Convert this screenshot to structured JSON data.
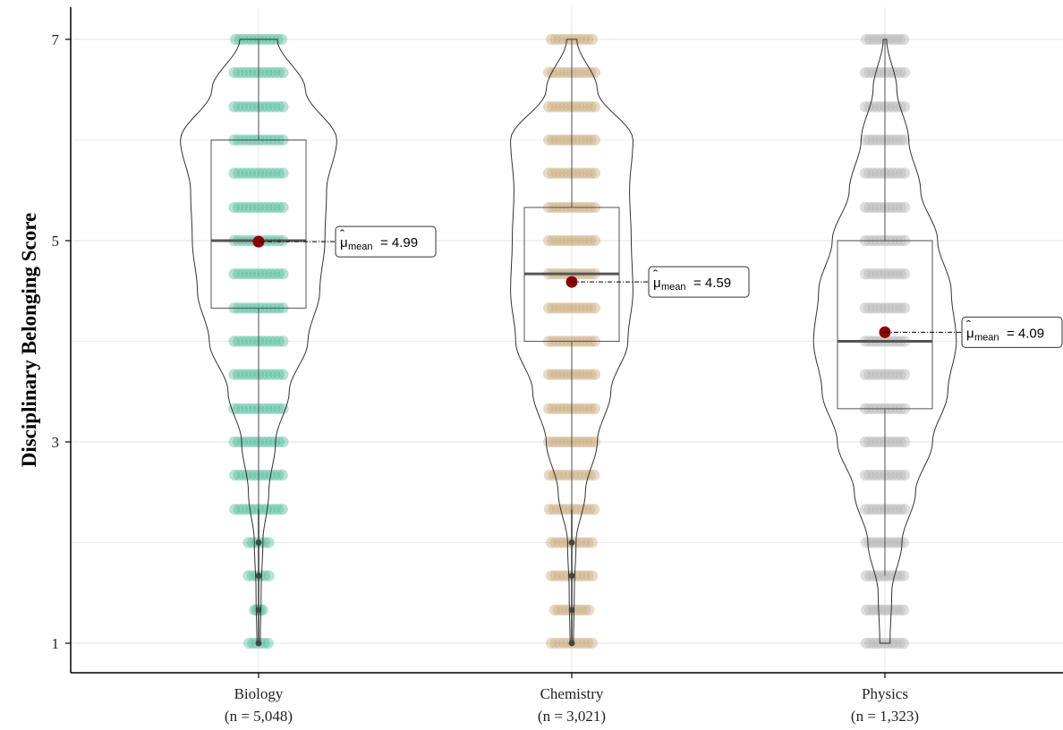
{
  "chart_data": {
    "type": "violin",
    "ylabel": "Disciplinary Belonging Score",
    "xlabel": "",
    "ylim": [
      0.8,
      7.25
    ],
    "yticks": [
      1,
      3,
      5,
      7
    ],
    "grid": true,
    "mean_marker_color": "#8b0000",
    "groups": [
      {
        "category": "Biology",
        "n_label": "(n = 5,048)",
        "color": "#5cbf9f",
        "min": 1,
        "q1": 4.33,
        "median": 5,
        "q3": 6,
        "max": 7,
        "whisker_low": 2.33,
        "whisker_high": 7,
        "mean": 4.99,
        "mean_label": "4.99",
        "outliers": [
          2,
          1.67,
          1.33,
          1
        ],
        "density": [
          [
            1,
            0.02
          ],
          [
            1.5,
            0.03
          ],
          [
            2,
            0.05
          ],
          [
            2.5,
            0.12
          ],
          [
            3,
            0.2
          ],
          [
            3.5,
            0.36
          ],
          [
            4,
            0.58
          ],
          [
            4.5,
            0.72
          ],
          [
            5,
            0.78
          ],
          [
            5.5,
            0.8
          ],
          [
            6,
            0.92
          ],
          [
            6.5,
            0.55
          ],
          [
            7,
            0.22
          ]
        ],
        "jitter_levels": [
          [
            1,
            0.28
          ],
          [
            1.33,
            0.12
          ],
          [
            1.67,
            0.3
          ],
          [
            2,
            0.3
          ],
          [
            2.33,
            0.7
          ],
          [
            2.67,
            0.7
          ],
          [
            3,
            0.72
          ],
          [
            3.33,
            0.72
          ],
          [
            3.67,
            0.72
          ],
          [
            4,
            0.72
          ],
          [
            4.33,
            0.72
          ],
          [
            4.67,
            0.72
          ],
          [
            5,
            0.72
          ],
          [
            5.33,
            0.72
          ],
          [
            5.67,
            0.72
          ],
          [
            6,
            0.72
          ],
          [
            6.33,
            0.72
          ],
          [
            6.67,
            0.72
          ],
          [
            7,
            0.68
          ]
        ]
      },
      {
        "category": "Chemistry",
        "n_label": "(n = 3,021)",
        "color": "#c9ae80",
        "min": 1,
        "q1": 4,
        "median": 4.67,
        "q3": 5.33,
        "max": 7,
        "whisker_low": 2.33,
        "whisker_high": 7,
        "mean": 4.59,
        "mean_label": "4.59",
        "outliers": [
          2,
          1.67,
          1.33,
          1
        ],
        "density": [
          [
            1,
            0.02
          ],
          [
            1.5,
            0.03
          ],
          [
            2,
            0.05
          ],
          [
            2.5,
            0.16
          ],
          [
            3,
            0.3
          ],
          [
            3.5,
            0.46
          ],
          [
            4,
            0.66
          ],
          [
            4.5,
            0.72
          ],
          [
            5,
            0.7
          ],
          [
            5.5,
            0.68
          ],
          [
            6,
            0.72
          ],
          [
            6.5,
            0.3
          ],
          [
            7,
            0.06
          ]
        ],
        "jitter_levels": [
          [
            1,
            0.6
          ],
          [
            1.33,
            0.5
          ],
          [
            1.67,
            0.6
          ],
          [
            2,
            0.6
          ],
          [
            2.33,
            0.66
          ],
          [
            2.67,
            0.66
          ],
          [
            3,
            0.68
          ],
          [
            3.33,
            0.68
          ],
          [
            3.67,
            0.68
          ],
          [
            4,
            0.68
          ],
          [
            4.33,
            0.68
          ],
          [
            4.67,
            0.68
          ],
          [
            5,
            0.68
          ],
          [
            5.33,
            0.68
          ],
          [
            5.67,
            0.68
          ],
          [
            6,
            0.68
          ],
          [
            6.33,
            0.68
          ],
          [
            6.67,
            0.68
          ],
          [
            7,
            0.6
          ]
        ]
      },
      {
        "category": "Physics",
        "n_label": "(n = 1,323)",
        "color": "#b5b5b5",
        "min": 1,
        "q1": 3.33,
        "median": 4,
        "q3": 5,
        "max": 7,
        "whisker_low": 1.67,
        "whisker_high": 7,
        "mean": 4.09,
        "mean_label": "4.09",
        "outliers": [],
        "density": [
          [
            1,
            0.06
          ],
          [
            1.5,
            0.08
          ],
          [
            2,
            0.2
          ],
          [
            2.5,
            0.36
          ],
          [
            3,
            0.56
          ],
          [
            3.5,
            0.74
          ],
          [
            4,
            0.84
          ],
          [
            4.5,
            0.78
          ],
          [
            5,
            0.62
          ],
          [
            5.5,
            0.42
          ],
          [
            6,
            0.28
          ],
          [
            6.5,
            0.14
          ],
          [
            7,
            0.02
          ]
        ],
        "jitter_levels": [
          [
            1,
            0.55
          ],
          [
            1.33,
            0.55
          ],
          [
            1.67,
            0.55
          ],
          [
            2,
            0.55
          ],
          [
            2.33,
            0.58
          ],
          [
            2.67,
            0.58
          ],
          [
            3,
            0.58
          ],
          [
            3.33,
            0.58
          ],
          [
            3.67,
            0.58
          ],
          [
            4,
            0.58
          ],
          [
            4.33,
            0.58
          ],
          [
            4.67,
            0.58
          ],
          [
            5,
            0.58
          ],
          [
            5.33,
            0.58
          ],
          [
            5.67,
            0.58
          ],
          [
            6,
            0.58
          ],
          [
            6.33,
            0.58
          ],
          [
            6.67,
            0.58
          ],
          [
            7,
            0.55
          ]
        ]
      }
    ]
  },
  "mean_prefix": "=",
  "mean_symbol": "μ",
  "mean_subscript": "mean"
}
